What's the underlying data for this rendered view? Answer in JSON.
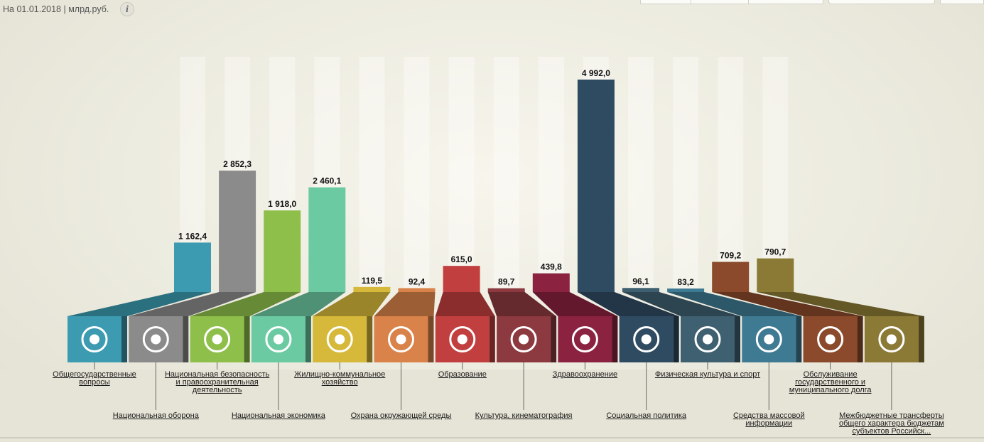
{
  "header": {
    "date_label": "На 01.01.2018 | млрд.руб.",
    "info_icon": "info-icon"
  },
  "chart_data": {
    "type": "bar",
    "title": "",
    "unit": "млрд.руб.",
    "categories": [
      "Общегосударственные вопросы",
      "Национальная оборона",
      "Национальная безопасность и правоохранительная деятельность",
      "Национальная экономика",
      "Жилищно-коммунальное хозяйство",
      "Охрана окружающей среды",
      "Образование",
      "Культура, кинематография",
      "Здравоохранение",
      "Социальная политика",
      "Физическая культура и спорт",
      "Средства массовой информации",
      "Обслуживание государственного и муниципального долга",
      "Межбюджетные трансферты общего характера бюджетам субъектов Российск..."
    ],
    "values": [
      1162.4,
      2852.3,
      1918.0,
      2460.1,
      119.5,
      92.4,
      615.0,
      89.7,
      439.8,
      4992.0,
      96.1,
      83.2,
      709.2,
      790.7
    ],
    "value_labels": [
      "1 162,4",
      "2 852,3",
      "1 918,0",
      "2 460,1",
      "119,5",
      "92,4",
      "615,0",
      "89,7",
      "439,8",
      "4 992,0",
      "96,1",
      "83,2",
      "709,2",
      "790,7"
    ],
    "colors": [
      "#3c9bb0",
      "#8b8b8b",
      "#8fbf4b",
      "#6ccaa3",
      "#d6b93a",
      "#d9824a",
      "#c23f3f",
      "#8c3a3f",
      "#8a2240",
      "#2f4b62",
      "#3f6070",
      "#3f7a93",
      "#8a4a2b",
      "#8b7a35"
    ],
    "icons": [
      "government-building-icon",
      "shield-icon",
      "handcuffs-icon",
      "bank-coins-icon",
      "pipe-valve-icon",
      "trees-icon",
      "graduation-cap-icon",
      "theater-masks-icon",
      "medical-bowl-icon",
      "people-icon",
      "soccer-ball-icon",
      "newspaper-icon",
      "hand-coins-icon",
      "money-bag-icon"
    ],
    "ylim": [
      0,
      4992
    ]
  }
}
